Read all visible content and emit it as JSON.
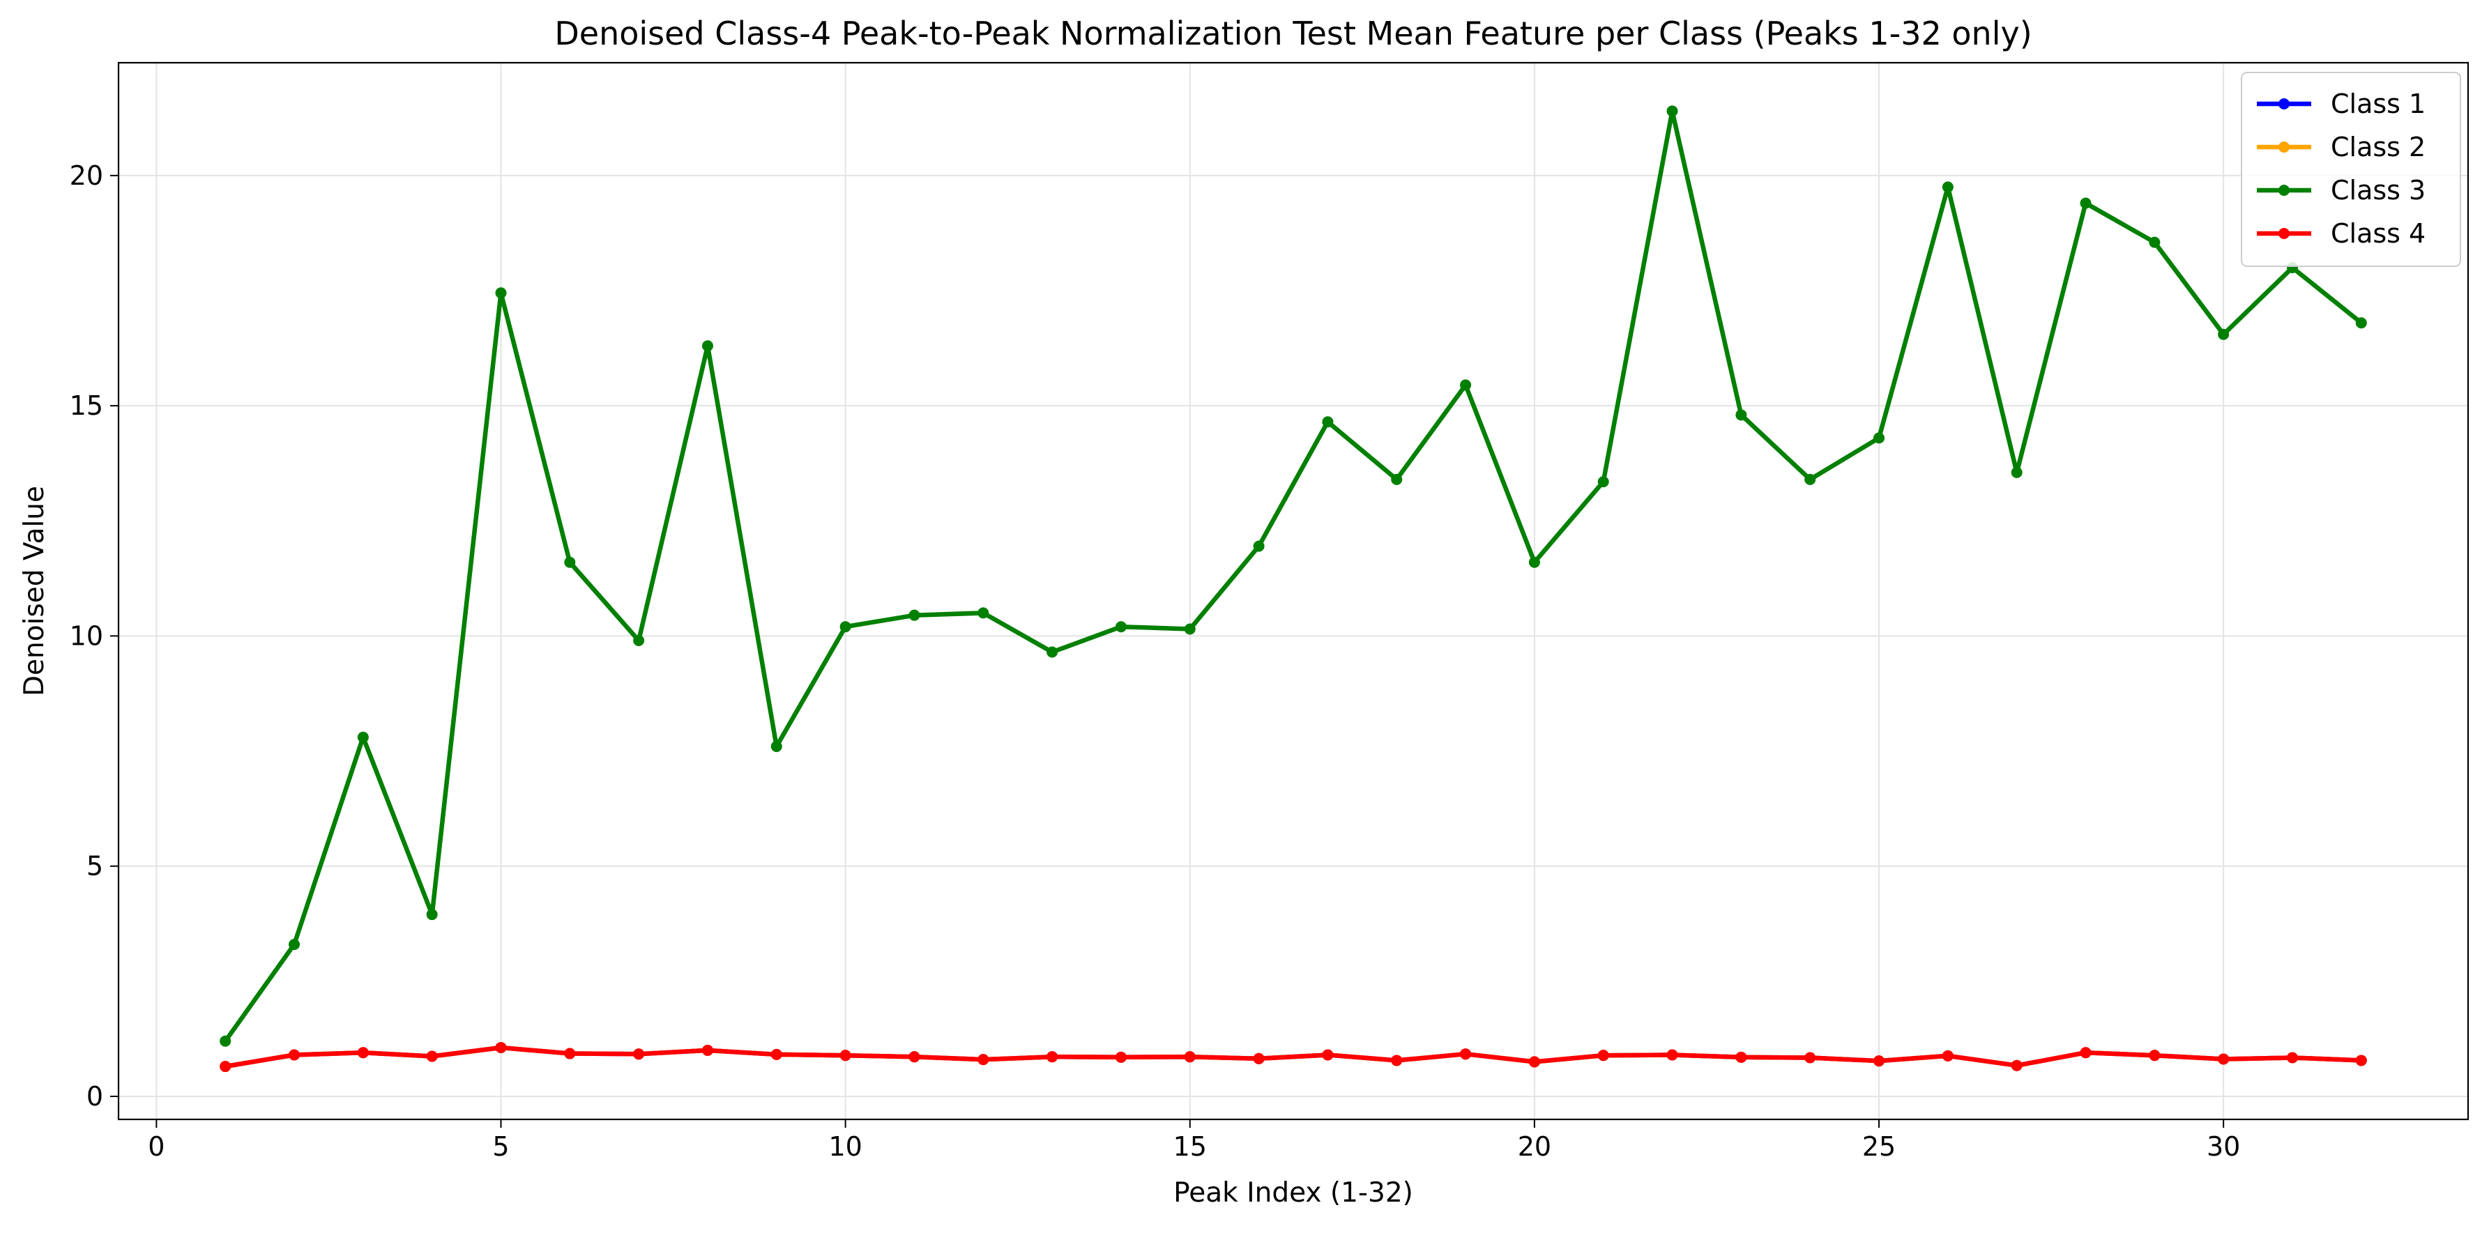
{
  "chart_data": {
    "type": "line",
    "title": "Denoised Class-4 Peak-to-Peak Normalization Test Mean Feature per Class (Peaks 1-32 only)",
    "xlabel": "Peak Index (1-32)",
    "ylabel": "Denoised Value",
    "xlim": [
      -0.55,
      33.55
    ],
    "ylim": [
      -0.5,
      22.45
    ],
    "grid": true,
    "legend_position": "top-right",
    "x": [
      1,
      2,
      3,
      4,
      5,
      6,
      7,
      8,
      9,
      10,
      11,
      12,
      13,
      14,
      15,
      16,
      17,
      18,
      19,
      20,
      21,
      22,
      23,
      24,
      25,
      26,
      27,
      28,
      29,
      30,
      31,
      32
    ],
    "x_ticks": [
      {
        "value": 0,
        "label": "0"
      },
      {
        "value": 5,
        "label": "5"
      },
      {
        "value": 10,
        "label": "10"
      },
      {
        "value": 15,
        "label": "15"
      },
      {
        "value": 20,
        "label": "20"
      },
      {
        "value": 25,
        "label": "25"
      },
      {
        "value": 30,
        "label": "30"
      }
    ],
    "y_ticks": [
      {
        "value": 0,
        "label": "0"
      },
      {
        "value": 5,
        "label": "5"
      },
      {
        "value": 10,
        "label": "10"
      },
      {
        "value": 15,
        "label": "15"
      },
      {
        "value": 20,
        "label": "20"
      }
    ],
    "series": [
      {
        "name": "Class 1",
        "color": "#0000ff",
        "values": [
          0.65,
          0.9,
          0.95,
          0.87,
          1.06,
          0.93,
          0.92,
          1.0,
          0.91,
          0.89,
          0.86,
          0.8,
          0.86,
          0.85,
          0.86,
          0.82,
          0.9,
          0.78,
          0.92,
          0.75,
          0.89,
          0.9,
          0.85,
          0.84,
          0.77,
          0.88,
          0.67,
          0.95,
          0.89,
          0.81,
          0.84,
          0.78
        ]
      },
      {
        "name": "Class 2",
        "color": "#ffa500",
        "values": [
          0.65,
          0.9,
          0.95,
          0.87,
          1.06,
          0.93,
          0.92,
          1.0,
          0.91,
          0.89,
          0.86,
          0.8,
          0.86,
          0.85,
          0.86,
          0.82,
          0.9,
          0.78,
          0.92,
          0.75,
          0.89,
          0.9,
          0.85,
          0.84,
          0.77,
          0.88,
          0.67,
          0.95,
          0.89,
          0.81,
          0.84,
          0.78
        ]
      },
      {
        "name": "Class 3",
        "color": "#008000",
        "values": [
          1.2,
          3.3,
          7.8,
          3.95,
          17.45,
          11.6,
          9.9,
          16.3,
          7.6,
          10.2,
          10.45,
          10.5,
          9.65,
          10.2,
          10.15,
          11.95,
          14.65,
          13.4,
          15.45,
          11.6,
          13.35,
          21.4,
          14.8,
          13.4,
          14.3,
          19.75,
          13.55,
          19.4,
          18.55,
          16.55,
          18.0,
          16.8
        ]
      },
      {
        "name": "Class 4",
        "color": "#ff0000",
        "values": [
          0.65,
          0.9,
          0.95,
          0.87,
          1.06,
          0.93,
          0.92,
          1.0,
          0.91,
          0.89,
          0.86,
          0.8,
          0.86,
          0.85,
          0.86,
          0.82,
          0.9,
          0.78,
          0.92,
          0.75,
          0.89,
          0.9,
          0.85,
          0.84,
          0.77,
          0.88,
          0.67,
          0.95,
          0.89,
          0.81,
          0.84,
          0.78
        ]
      }
    ]
  }
}
